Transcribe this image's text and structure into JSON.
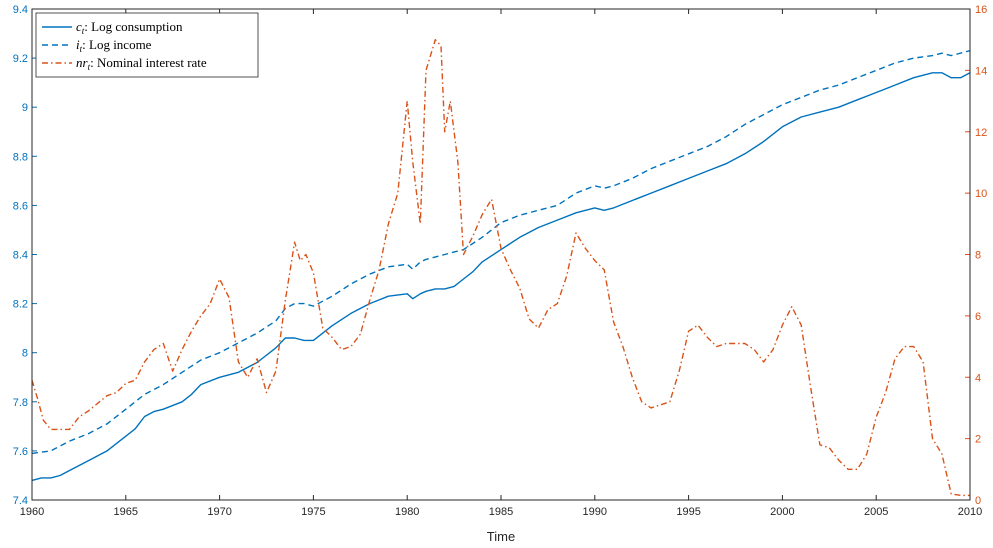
{
  "chart_data": {
    "type": "line",
    "xlabel": "Time",
    "xlim": [
      1960,
      2010
    ],
    "x_ticks": [
      "1960",
      "1965",
      "1970",
      "1975",
      "1980",
      "1985",
      "1990",
      "1995",
      "2000",
      "2005",
      "2010"
    ],
    "left_axis": {
      "ylim": [
        7.4,
        9.4
      ],
      "ticks": [
        "7.4",
        "7.6",
        "7.8",
        "8",
        "8.2",
        "8.4",
        "8.6",
        "8.8",
        "9",
        "9.2",
        "9.4"
      ],
      "color": "#0072BD"
    },
    "right_axis": {
      "ylim": [
        0,
        16
      ],
      "ticks": [
        "0",
        "2",
        "4",
        "6",
        "8",
        "10",
        "12",
        "14",
        "16"
      ],
      "color": "#D95319"
    },
    "legend": {
      "placement": "top-left",
      "entries": [
        {
          "sym": "c",
          "sub": "t",
          "text": ": Log consumption"
        },
        {
          "sym": "i",
          "sub": "t",
          "text": ": Log income"
        },
        {
          "sym": "nr",
          "sub": "t",
          "text": ": Nominal interest rate"
        }
      ]
    },
    "series": [
      {
        "name": "c_t: Log consumption",
        "axis": "left",
        "color": "#0072BD",
        "style": "solid",
        "points": [
          [
            1960,
            7.48
          ],
          [
            1960.5,
            7.49
          ],
          [
            1961,
            7.49
          ],
          [
            1961.5,
            7.5
          ],
          [
            1962,
            7.52
          ],
          [
            1963,
            7.56
          ],
          [
            1964,
            7.6
          ],
          [
            1965,
            7.66
          ],
          [
            1965.5,
            7.69
          ],
          [
            1966,
            7.74
          ],
          [
            1966.5,
            7.76
          ],
          [
            1967,
            7.77
          ],
          [
            1968,
            7.8
          ],
          [
            1968.5,
            7.83
          ],
          [
            1969,
            7.87
          ],
          [
            1970,
            7.9
          ],
          [
            1971,
            7.92
          ],
          [
            1972,
            7.96
          ],
          [
            1973,
            8.02
          ],
          [
            1973.5,
            8.06
          ],
          [
            1974,
            8.06
          ],
          [
            1974.5,
            8.05
          ],
          [
            1975,
            8.05
          ],
          [
            1975.5,
            8.08
          ],
          [
            1976,
            8.11
          ],
          [
            1977,
            8.16
          ],
          [
            1978,
            8.2
          ],
          [
            1979,
            8.23
          ],
          [
            1980,
            8.24
          ],
          [
            1980.3,
            8.22
          ],
          [
            1980.7,
            8.24
          ],
          [
            1981,
            8.25
          ],
          [
            1981.5,
            8.26
          ],
          [
            1982,
            8.26
          ],
          [
            1982.5,
            8.27
          ],
          [
            1983,
            8.3
          ],
          [
            1983.5,
            8.33
          ],
          [
            1984,
            8.37
          ],
          [
            1985,
            8.42
          ],
          [
            1986,
            8.47
          ],
          [
            1987,
            8.51
          ],
          [
            1988,
            8.54
          ],
          [
            1989,
            8.57
          ],
          [
            1990,
            8.59
          ],
          [
            1990.5,
            8.58
          ],
          [
            1991,
            8.59
          ],
          [
            1992,
            8.62
          ],
          [
            1993,
            8.65
          ],
          [
            1994,
            8.68
          ],
          [
            1995,
            8.71
          ],
          [
            1996,
            8.74
          ],
          [
            1997,
            8.77
          ],
          [
            1998,
            8.81
          ],
          [
            1999,
            8.86
          ],
          [
            2000,
            8.92
          ],
          [
            2001,
            8.96
          ],
          [
            2002,
            8.98
          ],
          [
            2003,
            9.0
          ],
          [
            2004,
            9.03
          ],
          [
            2005,
            9.06
          ],
          [
            2006,
            9.09
          ],
          [
            2007,
            9.12
          ],
          [
            2008,
            9.14
          ],
          [
            2008.5,
            9.14
          ],
          [
            2009,
            9.12
          ],
          [
            2009.5,
            9.12
          ],
          [
            2010,
            9.14
          ]
        ]
      },
      {
        "name": "i_t: Log income",
        "axis": "left",
        "color": "#0072BD",
        "style": "dashed",
        "points": [
          [
            1960,
            7.59
          ],
          [
            1961,
            7.6
          ],
          [
            1961.5,
            7.62
          ],
          [
            1962,
            7.64
          ],
          [
            1963,
            7.67
          ],
          [
            1964,
            7.71
          ],
          [
            1965,
            7.77
          ],
          [
            1966,
            7.83
          ],
          [
            1967,
            7.87
          ],
          [
            1968,
            7.92
          ],
          [
            1969,
            7.97
          ],
          [
            1970,
            8.0
          ],
          [
            1971,
            8.04
          ],
          [
            1972,
            8.08
          ],
          [
            1973,
            8.13
          ],
          [
            1973.5,
            8.18
          ],
          [
            1974,
            8.2
          ],
          [
            1974.5,
            8.2
          ],
          [
            1975,
            8.19
          ],
          [
            1976,
            8.23
          ],
          [
            1977,
            8.28
          ],
          [
            1978,
            8.32
          ],
          [
            1979,
            8.35
          ],
          [
            1980,
            8.36
          ],
          [
            1980.3,
            8.34
          ],
          [
            1980.7,
            8.37
          ],
          [
            1981,
            8.38
          ],
          [
            1982,
            8.4
          ],
          [
            1983,
            8.42
          ],
          [
            1984,
            8.47
          ],
          [
            1985,
            8.53
          ],
          [
            1986,
            8.56
          ],
          [
            1987,
            8.58
          ],
          [
            1988,
            8.6
          ],
          [
            1989,
            8.65
          ],
          [
            1990,
            8.68
          ],
          [
            1990.5,
            8.67
          ],
          [
            1991,
            8.68
          ],
          [
            1992,
            8.71
          ],
          [
            1993,
            8.75
          ],
          [
            1994,
            8.78
          ],
          [
            1995,
            8.81
          ],
          [
            1996,
            8.84
          ],
          [
            1997,
            8.88
          ],
          [
            1998,
            8.93
          ],
          [
            1999,
            8.97
          ],
          [
            2000,
            9.01
          ],
          [
            2001,
            9.04
          ],
          [
            2002,
            9.07
          ],
          [
            2003,
            9.09
          ],
          [
            2004,
            9.12
          ],
          [
            2005,
            9.15
          ],
          [
            2006,
            9.18
          ],
          [
            2007,
            9.2
          ],
          [
            2008,
            9.21
          ],
          [
            2008.5,
            9.22
          ],
          [
            2009,
            9.21
          ],
          [
            2010,
            9.23
          ]
        ]
      },
      {
        "name": "nr_t: Nominal interest rate",
        "axis": "right",
        "color": "#D95319",
        "style": "dashdot",
        "points": [
          [
            1960,
            3.9
          ],
          [
            1960.3,
            3.3
          ],
          [
            1960.6,
            2.6
          ],
          [
            1961,
            2.3
          ],
          [
            1961.5,
            2.3
          ],
          [
            1962,
            2.3
          ],
          [
            1962.5,
            2.7
          ],
          [
            1963,
            2.9
          ],
          [
            1964,
            3.4
          ],
          [
            1964.5,
            3.5
          ],
          [
            1965,
            3.8
          ],
          [
            1965.5,
            3.9
          ],
          [
            1966,
            4.5
          ],
          [
            1966.5,
            4.9
          ],
          [
            1967,
            5.1
          ],
          [
            1967.5,
            4.2
          ],
          [
            1968,
            4.9
          ],
          [
            1968.5,
            5.5
          ],
          [
            1969,
            6.0
          ],
          [
            1969.5,
            6.4
          ],
          [
            1970,
            7.2
          ],
          [
            1970.5,
            6.6
          ],
          [
            1971,
            4.5
          ],
          [
            1971.5,
            4.0
          ],
          [
            1972,
            4.6
          ],
          [
            1972.5,
            3.5
          ],
          [
            1973,
            4.2
          ],
          [
            1973.5,
            6.5
          ],
          [
            1974,
            8.4
          ],
          [
            1974.3,
            7.8
          ],
          [
            1974.6,
            8.0
          ],
          [
            1975,
            7.4
          ],
          [
            1975.5,
            5.6
          ],
          [
            1976,
            5.3
          ],
          [
            1976.5,
            4.9
          ],
          [
            1977,
            5.0
          ],
          [
            1977.5,
            5.4
          ],
          [
            1978,
            6.5
          ],
          [
            1978.5,
            7.5
          ],
          [
            1979,
            9.0
          ],
          [
            1979.5,
            10.0
          ],
          [
            1980,
            13.0
          ],
          [
            1980.3,
            11.0
          ],
          [
            1980.7,
            9.0
          ],
          [
            1981,
            14.0
          ],
          [
            1981.5,
            15.0
          ],
          [
            1981.8,
            14.8
          ],
          [
            1982,
            12.0
          ],
          [
            1982.3,
            13.0
          ],
          [
            1982.7,
            11.0
          ],
          [
            1983,
            8.0
          ],
          [
            1983.5,
            8.6
          ],
          [
            1984,
            9.3
          ],
          [
            1984.5,
            9.8
          ],
          [
            1985,
            8.2
          ],
          [
            1985.5,
            7.5
          ],
          [
            1986,
            6.9
          ],
          [
            1986.5,
            5.9
          ],
          [
            1987,
            5.6
          ],
          [
            1987.5,
            6.2
          ],
          [
            1988,
            6.4
          ],
          [
            1988.5,
            7.3
          ],
          [
            1989,
            8.7
          ],
          [
            1989.5,
            8.2
          ],
          [
            1990,
            7.8
          ],
          [
            1990.5,
            7.5
          ],
          [
            1991,
            5.8
          ],
          [
            1991.5,
            5.0
          ],
          [
            1992,
            4.0
          ],
          [
            1992.5,
            3.2
          ],
          [
            1993,
            3.0
          ],
          [
            1994,
            3.2
          ],
          [
            1994.5,
            4.2
          ],
          [
            1995,
            5.5
          ],
          [
            1995.5,
            5.7
          ],
          [
            1996,
            5.3
          ],
          [
            1996.5,
            5.0
          ],
          [
            1997,
            5.1
          ],
          [
            1998,
            5.1
          ],
          [
            1998.5,
            4.9
          ],
          [
            1999,
            4.5
          ],
          [
            1999.5,
            4.9
          ],
          [
            2000,
            5.7
          ],
          [
            2000.5,
            6.3
          ],
          [
            2001,
            5.7
          ],
          [
            2001.5,
            3.7
          ],
          [
            2002,
            1.8
          ],
          [
            2002.5,
            1.7
          ],
          [
            2003,
            1.3
          ],
          [
            2003.5,
            1.0
          ],
          [
            2004,
            1.0
          ],
          [
            2004.5,
            1.5
          ],
          [
            2005,
            2.7
          ],
          [
            2005.5,
            3.5
          ],
          [
            2006,
            4.6
          ],
          [
            2006.5,
            5.0
          ],
          [
            2007,
            5.0
          ],
          [
            2007.5,
            4.5
          ],
          [
            2008,
            2.0
          ],
          [
            2008.5,
            1.5
          ],
          [
            2009,
            0.2
          ],
          [
            2009.5,
            0.15
          ],
          [
            2010,
            0.15
          ]
        ]
      }
    ]
  }
}
